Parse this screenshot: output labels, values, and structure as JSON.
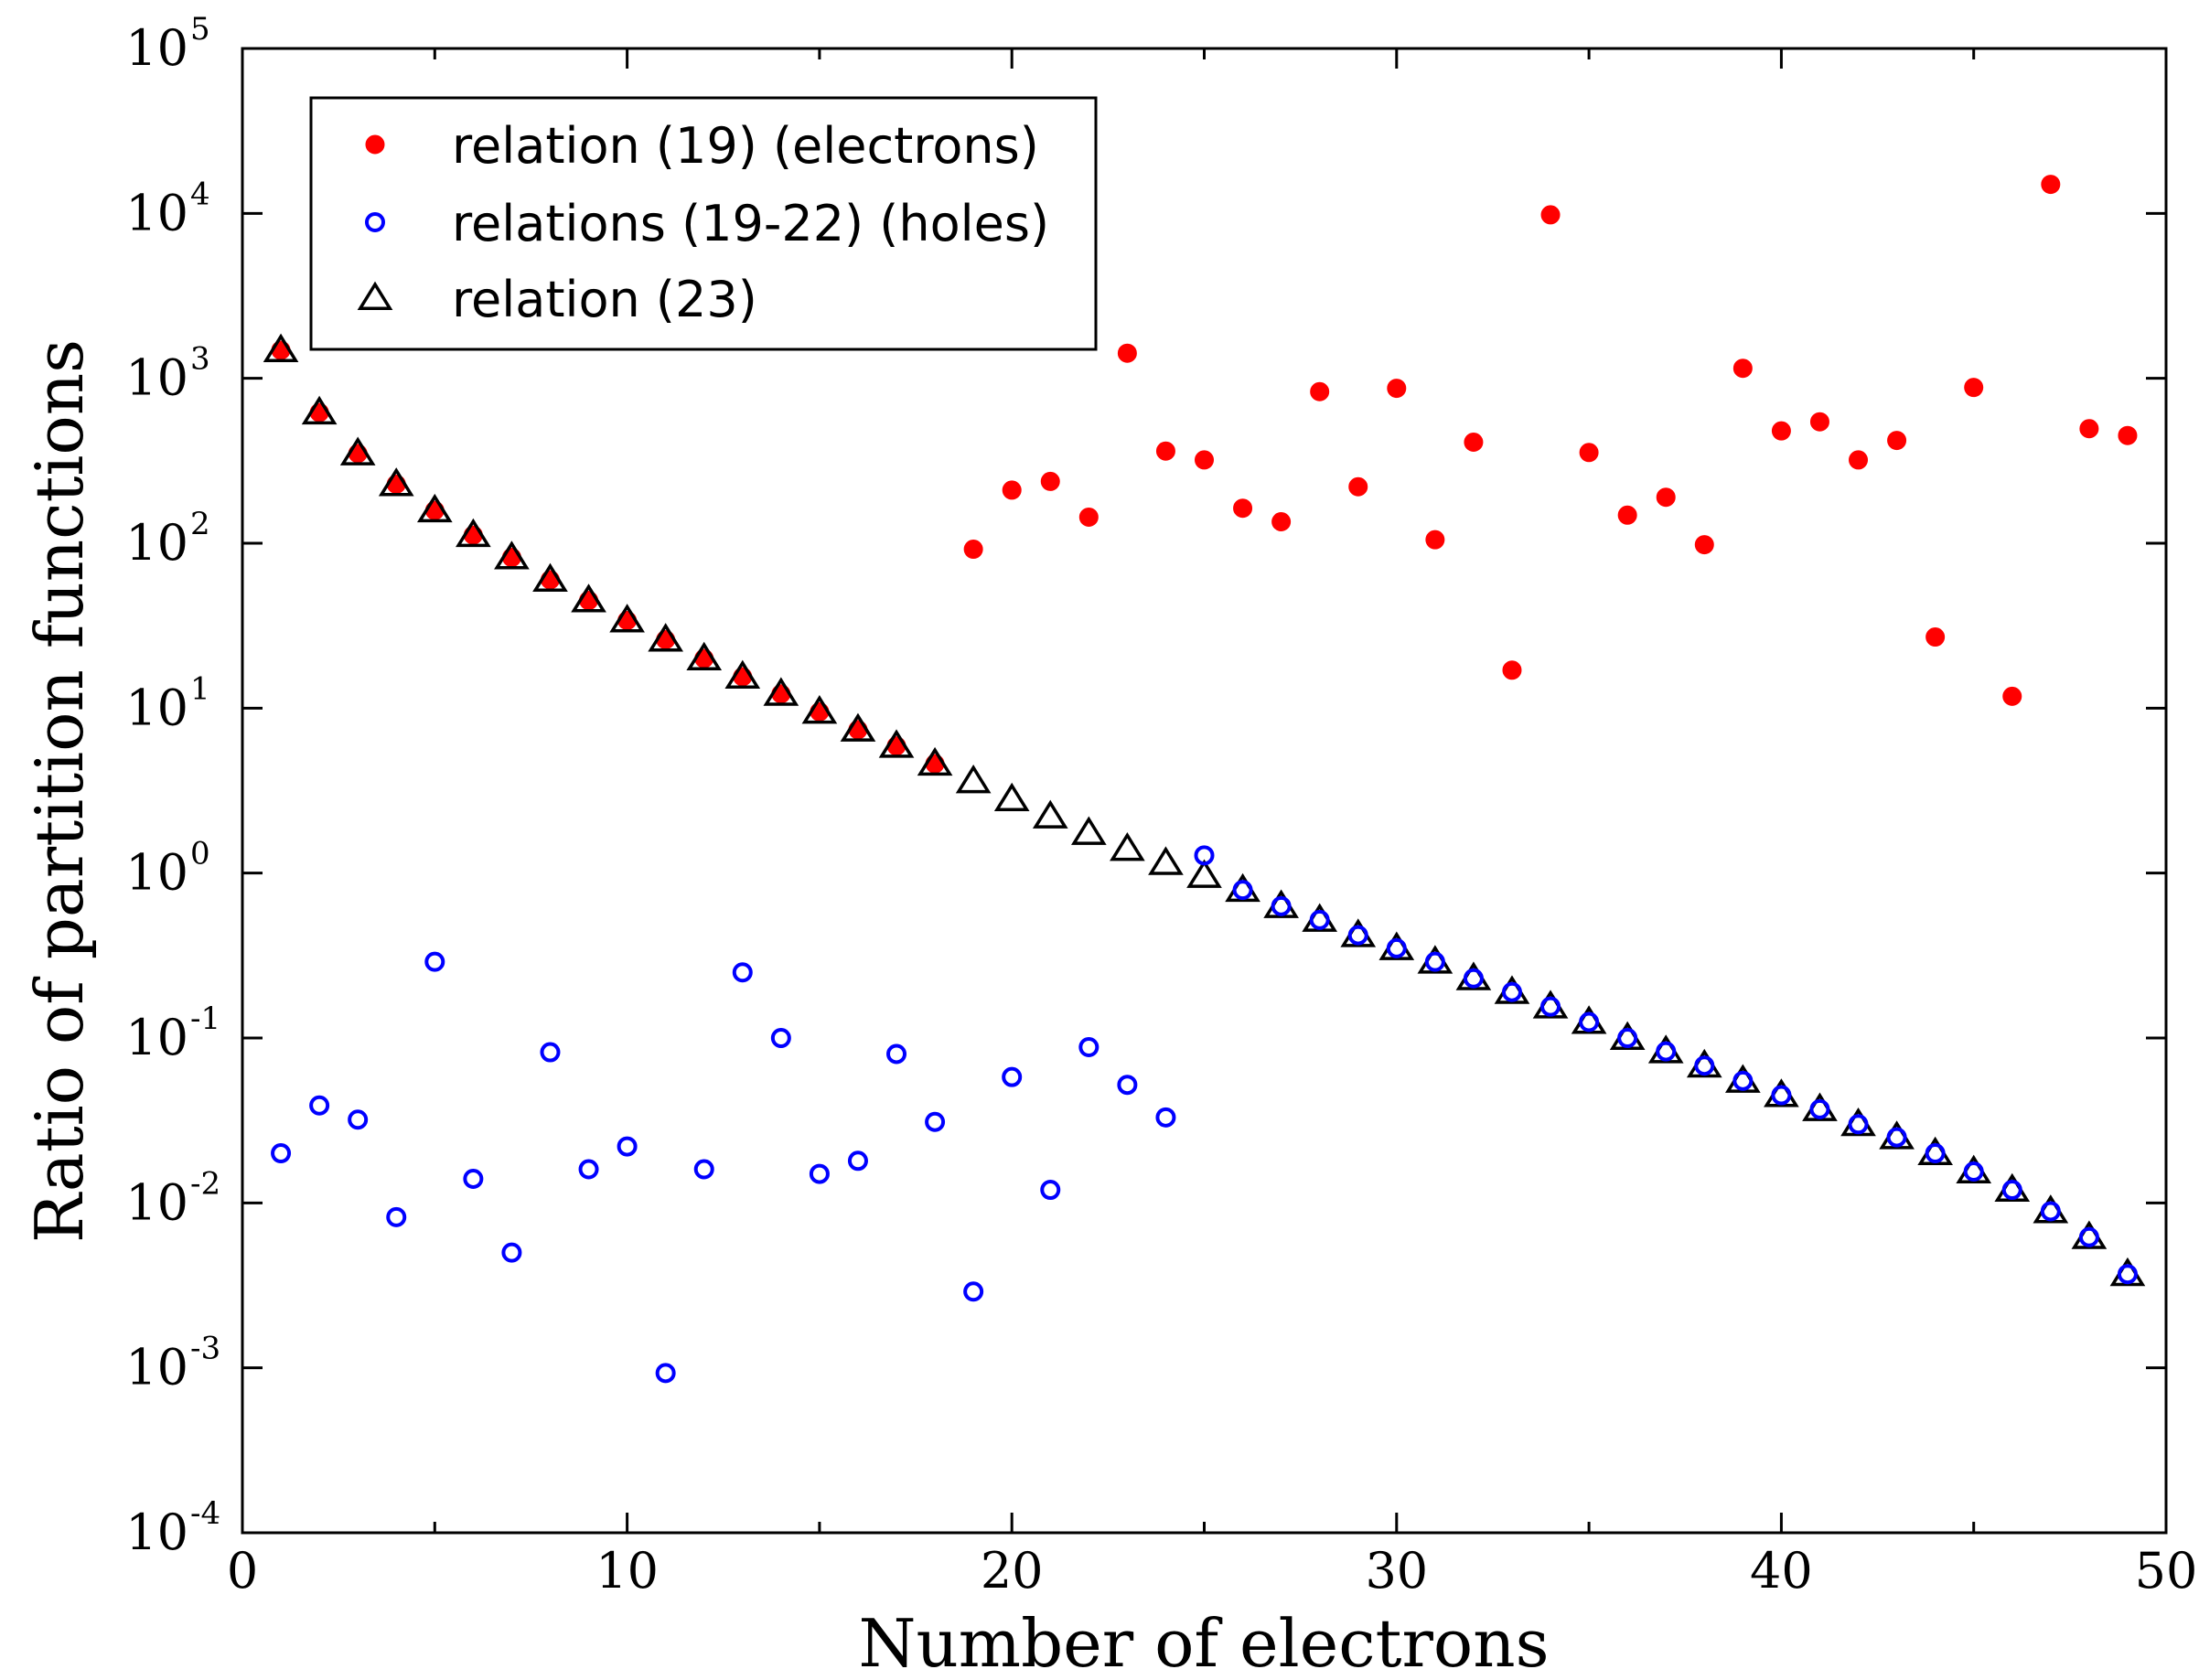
{
  "chart_data": {
    "type": "scatter",
    "xlabel": "Number of electrons",
    "ylabel": "Ratio of partition functions",
    "xlim": [
      0,
      50
    ],
    "xticks": [
      "0",
      "10",
      "20",
      "30",
      "40",
      "50"
    ],
    "y_scale": "log",
    "y_log_range": [
      -4,
      5
    ],
    "yticks": [
      {
        "base": "10",
        "exp": "-4"
      },
      {
        "base": "10",
        "exp": "-3"
      },
      {
        "base": "10",
        "exp": "-2"
      },
      {
        "base": "10",
        "exp": "-1"
      },
      {
        "base": "10",
        "exp": "0"
      },
      {
        "base": "10",
        "exp": "1"
      },
      {
        "base": "10",
        "exp": "2"
      },
      {
        "base": "10",
        "exp": "3"
      },
      {
        "base": "10",
        "exp": "4"
      },
      {
        "base": "10",
        "exp": "5"
      }
    ],
    "grid": false,
    "legend_position": "top-left",
    "series": [
      {
        "name": "relation (19) (electrons)",
        "marker": "filled-circle",
        "color": "#ff0000",
        "x": [
          1,
          2,
          3,
          4,
          5,
          6,
          7,
          8,
          9,
          10,
          11,
          12,
          13,
          14,
          15,
          16,
          17,
          18,
          19,
          20,
          21,
          22,
          23,
          24,
          25,
          26,
          27,
          28,
          29,
          30,
          31,
          32,
          33,
          34,
          35,
          36,
          37,
          38,
          39,
          40,
          41,
          42,
          43,
          44,
          45,
          46,
          47,
          48,
          49
        ],
        "y": [
          1480,
          620,
          350,
          228,
          158,
          112,
          82,
          60,
          45,
          34,
          26,
          20,
          15.5,
          12.2,
          9.5,
          7.4,
          5.9,
          4.6,
          92,
          210,
          237,
          144,
          1420,
          362,
          320,
          163,
          135,
          830,
          220,
          870,
          105,
          410,
          17,
          9800,
          355,
          148,
          190,
          98,
          1150,
          480,
          545,
          320,
          420,
          27,
          880,
          11.8,
          15000,
          495,
          450
        ]
      },
      {
        "name": "relations (19-22) (holes)",
        "marker": "open-circle",
        "color": "#0000ff",
        "x": [
          1,
          2,
          3,
          4,
          5,
          6,
          7,
          8,
          9,
          10,
          11,
          12,
          13,
          14,
          15,
          16,
          17,
          18,
          19,
          20,
          21,
          22,
          23,
          24,
          25,
          26,
          27,
          28,
          29,
          30,
          31,
          32,
          33,
          34,
          35,
          36,
          37,
          38,
          39,
          40,
          41,
          42,
          43,
          44,
          45,
          46,
          47,
          48,
          49
        ],
        "y": [
          0.02,
          0.039,
          0.032,
          0.0082,
          0.29,
          0.014,
          0.005,
          0.082,
          0.016,
          0.022,
          0.00093,
          0.016,
          0.25,
          0.1,
          0.015,
          0.018,
          0.08,
          0.031,
          0.0029,
          0.058,
          0.012,
          0.088,
          0.052,
          0.033,
          1.28,
          0.79,
          0.63,
          0.52,
          0.42,
          0.35,
          0.29,
          0.23,
          0.19,
          0.155,
          0.125,
          0.1,
          0.083,
          0.068,
          0.055,
          0.045,
          0.037,
          0.03,
          0.025,
          0.02,
          0.0155,
          0.012,
          0.0089,
          0.0062,
          0.0037
        ]
      },
      {
        "name": "relation (23)",
        "marker": "open-triangle",
        "color": "#000000",
        "x": [
          1,
          2,
          3,
          4,
          5,
          6,
          7,
          8,
          9,
          10,
          11,
          12,
          13,
          14,
          15,
          16,
          17,
          18,
          19,
          20,
          21,
          22,
          23,
          24,
          25,
          26,
          27,
          28,
          29,
          30,
          31,
          32,
          33,
          34,
          35,
          36,
          37,
          38,
          39,
          40,
          41,
          42,
          43,
          44,
          45,
          46,
          47,
          48,
          49
        ],
        "y": [
          1480,
          620,
          350,
          228,
          158,
          112,
          82,
          60,
          45,
          34,
          26,
          20,
          15.5,
          12.2,
          9.5,
          7.4,
          5.9,
          4.6,
          3.6,
          2.8,
          2.2,
          1.75,
          1.4,
          1.15,
          0.96,
          0.79,
          0.63,
          0.52,
          0.42,
          0.35,
          0.29,
          0.23,
          0.19,
          0.155,
          0.125,
          0.1,
          0.083,
          0.068,
          0.055,
          0.045,
          0.037,
          0.03,
          0.025,
          0.02,
          0.0155,
          0.012,
          0.0089,
          0.0062,
          0.0037
        ]
      }
    ]
  }
}
